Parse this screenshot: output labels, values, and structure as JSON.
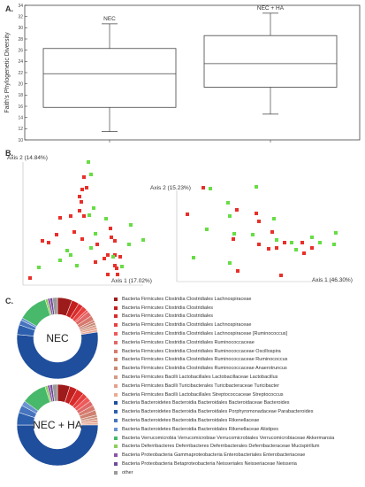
{
  "panels": {
    "a": {
      "label": "A."
    },
    "b": {
      "label": "B."
    },
    "c": {
      "label": "C."
    }
  },
  "boxplot": {
    "ylabel": "Faith's Phylogenetic Diversity",
    "ylim": [
      10,
      34
    ],
    "yticks": [
      10,
      12,
      14,
      16,
      18,
      20,
      22,
      24,
      26,
      28,
      30,
      32,
      34
    ],
    "groups": [
      {
        "name": "NEC",
        "whisker_low": 11.5,
        "q1": 15.8,
        "median": 21.8,
        "q3": 26.3,
        "whisker_high": 30.7
      },
      {
        "name": "NEC + HA",
        "whisker_low": 14.6,
        "q1": 19.4,
        "median": 23.6,
        "q3": 28.6,
        "whisker_high": 32.6
      }
    ]
  },
  "pcoa": {
    "left": {
      "axis1_label": "Axis 1 (17.02%)",
      "axis2_label": "Axis 2 (14.84%)"
    },
    "right": {
      "axis1_label": "Axis 1 (46.30%)",
      "axis2_label": "Axis 2 (15.23%)"
    },
    "colors": {
      "NEC": "#e8302a",
      "NEC + HA": "#66dd44"
    }
  },
  "chart_data": [
    {
      "type": "box",
      "categories": [
        "NEC",
        "NEC + HA"
      ],
      "ylabel": "Faith's Phylogenetic Diversity",
      "ylim": [
        10,
        34
      ],
      "series": [
        {
          "name": "NEC",
          "min": 11.5,
          "q1": 15.8,
          "median": 21.8,
          "q3": 26.3,
          "max": 30.7
        },
        {
          "name": "NEC + HA",
          "min": 14.6,
          "q1": 19.4,
          "median": 23.6,
          "q3": 28.6,
          "max": 32.6
        }
      ]
    },
    {
      "type": "scatter",
      "xlabel": "Axis 1 (17.02%)",
      "ylabel": "Axis 2 (14.84%)",
      "series": [
        {
          "name": "NEC",
          "points": [
            [
              95,
              200
            ],
            [
              93,
              214
            ],
            [
              98,
              212
            ],
            [
              90,
              222
            ],
            [
              92,
              228
            ],
            [
              68,
              246
            ],
            [
              80,
              244
            ],
            [
              95,
              244
            ],
            [
              90,
              238
            ],
            [
              64,
              265
            ],
            [
              48,
              272
            ],
            [
              55,
              274
            ],
            [
              93,
              270
            ],
            [
              110,
              276
            ],
            [
              125,
              258
            ],
            [
              126,
              268
            ],
            [
              130,
              272
            ],
            [
              130,
              288
            ],
            [
              136,
              290
            ],
            [
              122,
              288
            ],
            [
              108,
              296
            ],
            [
              130,
              300
            ],
            [
              132,
              303
            ],
            [
              118,
              292
            ],
            [
              122,
              310
            ],
            [
              133,
              310
            ],
            [
              34,
              314
            ],
            [
              84,
              262
            ]
          ]
        },
        {
          "name": "NEC + HA",
          "points": [
            [
              100,
              183
            ],
            [
              103,
              197
            ],
            [
              106,
              235
            ],
            [
              101,
              243
            ],
            [
              120,
              247
            ],
            [
              148,
              254
            ],
            [
              162,
              271
            ],
            [
              146,
              276
            ],
            [
              128,
              290
            ],
            [
              138,
              301
            ],
            [
              108,
              264
            ],
            [
              103,
              280
            ],
            [
              80,
              288
            ],
            [
              76,
              283
            ],
            [
              68,
              294
            ],
            [
              44,
              302
            ],
            [
              87,
              300
            ]
          ]
        }
      ]
    },
    {
      "type": "scatter",
      "xlabel": "Axis 1 (46.30%)",
      "ylabel": "Axis 2 (15.23%)",
      "series": [
        {
          "name": "NEC",
          "points": [
            [
              230,
              212
            ],
            [
              212,
              242
            ],
            [
              268,
              237
            ],
            [
              290,
              241
            ],
            [
              293,
              250
            ],
            [
              308,
              262
            ],
            [
              322,
              274
            ],
            [
              293,
              276
            ],
            [
              304,
              281
            ],
            [
              342,
              274
            ],
            [
              344,
              286
            ],
            [
              264,
              270
            ],
            [
              269,
              306
            ],
            [
              313,
              280
            ],
            [
              318,
              311
            ],
            [
              353,
              280
            ]
          ]
        },
        {
          "name": "NEC + HA",
          "points": [
            [
              238,
              213
            ],
            [
              290,
              211
            ],
            [
              258,
              229
            ],
            [
              310,
              247
            ],
            [
              260,
              244
            ],
            [
              234,
              259
            ],
            [
              265,
              264
            ],
            [
              286,
              265
            ],
            [
              313,
              271
            ],
            [
              330,
              274
            ],
            [
              335,
              282
            ],
            [
              353,
              268
            ],
            [
              362,
              274
            ],
            [
              380,
              263
            ],
            [
              378,
              276
            ],
            [
              260,
              297
            ],
            [
              219,
              291
            ]
          ]
        }
      ]
    },
    {
      "type": "pie",
      "title": "NEC",
      "donut": true,
      "categories": [
        "Bacteria Firmicutes Clostridia Clostridiales Lachnospiraceae",
        "Bacteria Firmicutes Clostridia Clostridiales",
        "Bacteria Firmicutes Clostridia Clostridiales",
        "Bacteria Firmicutes Clostridia Clostridiales Lachnospiraceae",
        "Bacteria Firmicutes Clostridia Clostridiales Lachnospiraceae [Ruminococcus]",
        "Bacteria Firmicutes Clostridia Clostridiales Ruminococcaceae",
        "Bacteria Firmicutes Clostridia Clostridiales Ruminococcaceae Oscillospira",
        "Bacteria Firmicutes Clostridia Clostridiales Ruminococcaceae Ruminococcus",
        "Bacteria Firmicutes Clostridia Clostridiales Ruminococcaceae Anaerotruncus",
        "Bacteria Firmicutes Bacilli Lactobacillales Lactobacillaceae Lactobacillus",
        "Bacteria Firmicutes Bacilli Turicibacterales Turicibacteraceae Turicibacter",
        "Bacteria Firmicutes Bacilli Lactobacillales Streptococcaceae Streptococcus",
        "Bacteria Bacteroidetes Bacteroidia Bacteroidales Bacteroidaceae Bacteroides",
        "Bacteria Bacteroidetes Bacteroidia Bacteroidales Porphyromonadaceae Parabacteroides",
        "Bacteria Bacteroidetes Bacteroidia Bacteroidales Rikenellaceae",
        "Bacteria Bacteroidetes Bacteroidia Bacteroidales Rikenellaceae Alistipes",
        "Bacteria Verrucomicrobia Verrucomicrobiae Verrucomicrobiales Verrucomicrobiaceae Akkermansia",
        "Bacteria Deferribacteres Deferribacteres Deferribacterales Deferribacteraceae Mucispirillum",
        "Bacteria Proteobacteria Gammaproteobacteria Enterobacteriales Enterobacteriaceae",
        "Bacteria Proteobacteria Betaproteobacteria Neisseriales Neisseriaceae Neisseria",
        "other"
      ],
      "values": [
        6,
        3,
        2,
        2,
        1,
        2,
        2,
        1,
        1,
        1,
        1,
        1,
        55,
        4,
        2,
        1,
        12,
        1,
        1,
        1,
        2
      ]
    },
    {
      "type": "pie",
      "title": "NEC + HA",
      "donut": true,
      "categories": [
        "Bacteria Firmicutes Clostridia Clostridiales Lachnospiraceae",
        "Bacteria Firmicutes Clostridia Clostridiales",
        "Bacteria Firmicutes Clostridia Clostridiales",
        "Bacteria Firmicutes Clostridia Clostridiales Lachnospiraceae",
        "Bacteria Firmicutes Clostridia Clostridiales Lachnospiraceae [Ruminococcus]",
        "Bacteria Firmicutes Clostridia Clostridiales Ruminococcaceae",
        "Bacteria Firmicutes Clostridia Clostridiales Ruminococcaceae Oscillospira",
        "Bacteria Firmicutes Clostridia Clostridiales Ruminococcaceae Ruminococcus",
        "Bacteria Firmicutes Clostridia Clostridiales Ruminococcaceae Anaerotruncus",
        "Bacteria Firmicutes Bacilli Lactobacillales Lactobacillaceae Lactobacillus",
        "Bacteria Firmicutes Bacilli Turicibacterales Turicibacteraceae Turicibacter",
        "Bacteria Firmicutes Bacilli Lactobacillales Streptococcaceae Streptococcus",
        "Bacteria Bacteroidetes Bacteroidia Bacteroidales Bacteroidaceae Bacteroides",
        "Bacteria Bacteroidetes Bacteroidia Bacteroidales Porphyromonadaceae Parabacteroides",
        "Bacteria Bacteroidetes Bacteroidia Bacteroidales Rikenellaceae",
        "Bacteria Bacteroidetes Bacteroidia Bacteroidales Rikenellaceae Alistipes",
        "Bacteria Verrucomicrobia Verrucomicrobiae Verrucomicrobiales Verrucomicrobiaceae Akkermansia",
        "Bacteria Deferribacteres Deferribacteres Deferribacterales Deferribacteraceae Mucispirillum",
        "Bacteria Proteobacteria Gammaproteobacteria Enterobacteriales Enterobacteriaceae",
        "Bacteria Proteobacteria Betaproteobacteria Neisseriales Neisseriaceae Neisseria",
        "other"
      ],
      "values": [
        5,
        3,
        3,
        2,
        2,
        2,
        2,
        2,
        1,
        1,
        1,
        1,
        50,
        5,
        3,
        2,
        10,
        1,
        1,
        1,
        2
      ]
    }
  ],
  "legend": [
    {
      "label": "Bacteria Firmicutes Clostridia Clostridiales Lachnospiraceae",
      "color": "#9e1b1b"
    },
    {
      "label": "Bacteria Firmicutes Clostridia Clostridiales",
      "color": "#c41f1f"
    },
    {
      "label": "Bacteria Firmicutes Clostridia Clostridiales",
      "color": "#d92b2b"
    },
    {
      "label": "Bacteria Firmicutes Clostridia Clostridiales Lachnospiraceae",
      "color": "#e84040"
    },
    {
      "label": "Bacteria Firmicutes Clostridia Clostridiales Lachnospiraceae [Ruminococcus]",
      "color": "#ee5a5a"
    },
    {
      "label": "Bacteria Firmicutes Clostridia Clostridiales Ruminococcaceae",
      "color": "#e06868"
    },
    {
      "label": "Bacteria Firmicutes Clostridia Clostridiales Ruminococcaceae Oscillospira",
      "color": "#d77a6e"
    },
    {
      "label": "Bacteria Firmicutes Clostridia Clostridiales Ruminococcaceae Ruminococcus",
      "color": "#cf8070"
    },
    {
      "label": "Bacteria Firmicutes Clostridia Clostridiales Ruminococcaceae Anaerotruncus",
      "color": "#c98a78"
    },
    {
      "label": "Bacteria Firmicutes Bacilli Lactobacillales Lactobacillaceae Lactobacillus",
      "color": "#d69a86"
    },
    {
      "label": "Bacteria Firmicutes Bacilli Turicibacterales Turicibacteraceae Turicibacter",
      "color": "#e3a08c"
    },
    {
      "label": "Bacteria Firmicutes Bacilli Lactobacillales Streptococcaceae Streptococcus",
      "color": "#e8ab96"
    },
    {
      "label": "Bacteria Bacteroidetes Bacteroidia Bacteroidales Bacteroidaceae Bacteroides",
      "color": "#1f4e9c"
    },
    {
      "label": "Bacteria Bacteroidetes Bacteroidia Bacteroidales Porphyromonadaceae Parabacteroides",
      "color": "#2c5fae"
    },
    {
      "label": "Bacteria Bacteroidetes Bacteroidia Bacteroidales Rikenellaceae",
      "color": "#4674bf"
    },
    {
      "label": "Bacteria Bacteroidetes Bacteroidia Bacteroidales Rikenellaceae Alistipes",
      "color": "#6a93d0"
    },
    {
      "label": "Bacteria Verrucomicrobia Verrucomicrobiae Verrucomicrobiales Verrucomicrobiaceae Akkermansia",
      "color": "#48b86a"
    },
    {
      "label": "Bacteria Deferribacteres Deferribacteres Deferribacterales Deferribacteraceae Mucispirillum",
      "color": "#8bcf5a"
    },
    {
      "label": "Bacteria Proteobacteria Gammaproteobacteria Enterobacteriales Enterobacteriaceae",
      "color": "#8a55a8"
    },
    {
      "label": "Bacteria Proteobacteria Betaproteobacteria Neisseriales Neisseriaceae Neisseria",
      "color": "#6f4a96"
    },
    {
      "label": "other",
      "color": "#9a9a9a"
    }
  ]
}
